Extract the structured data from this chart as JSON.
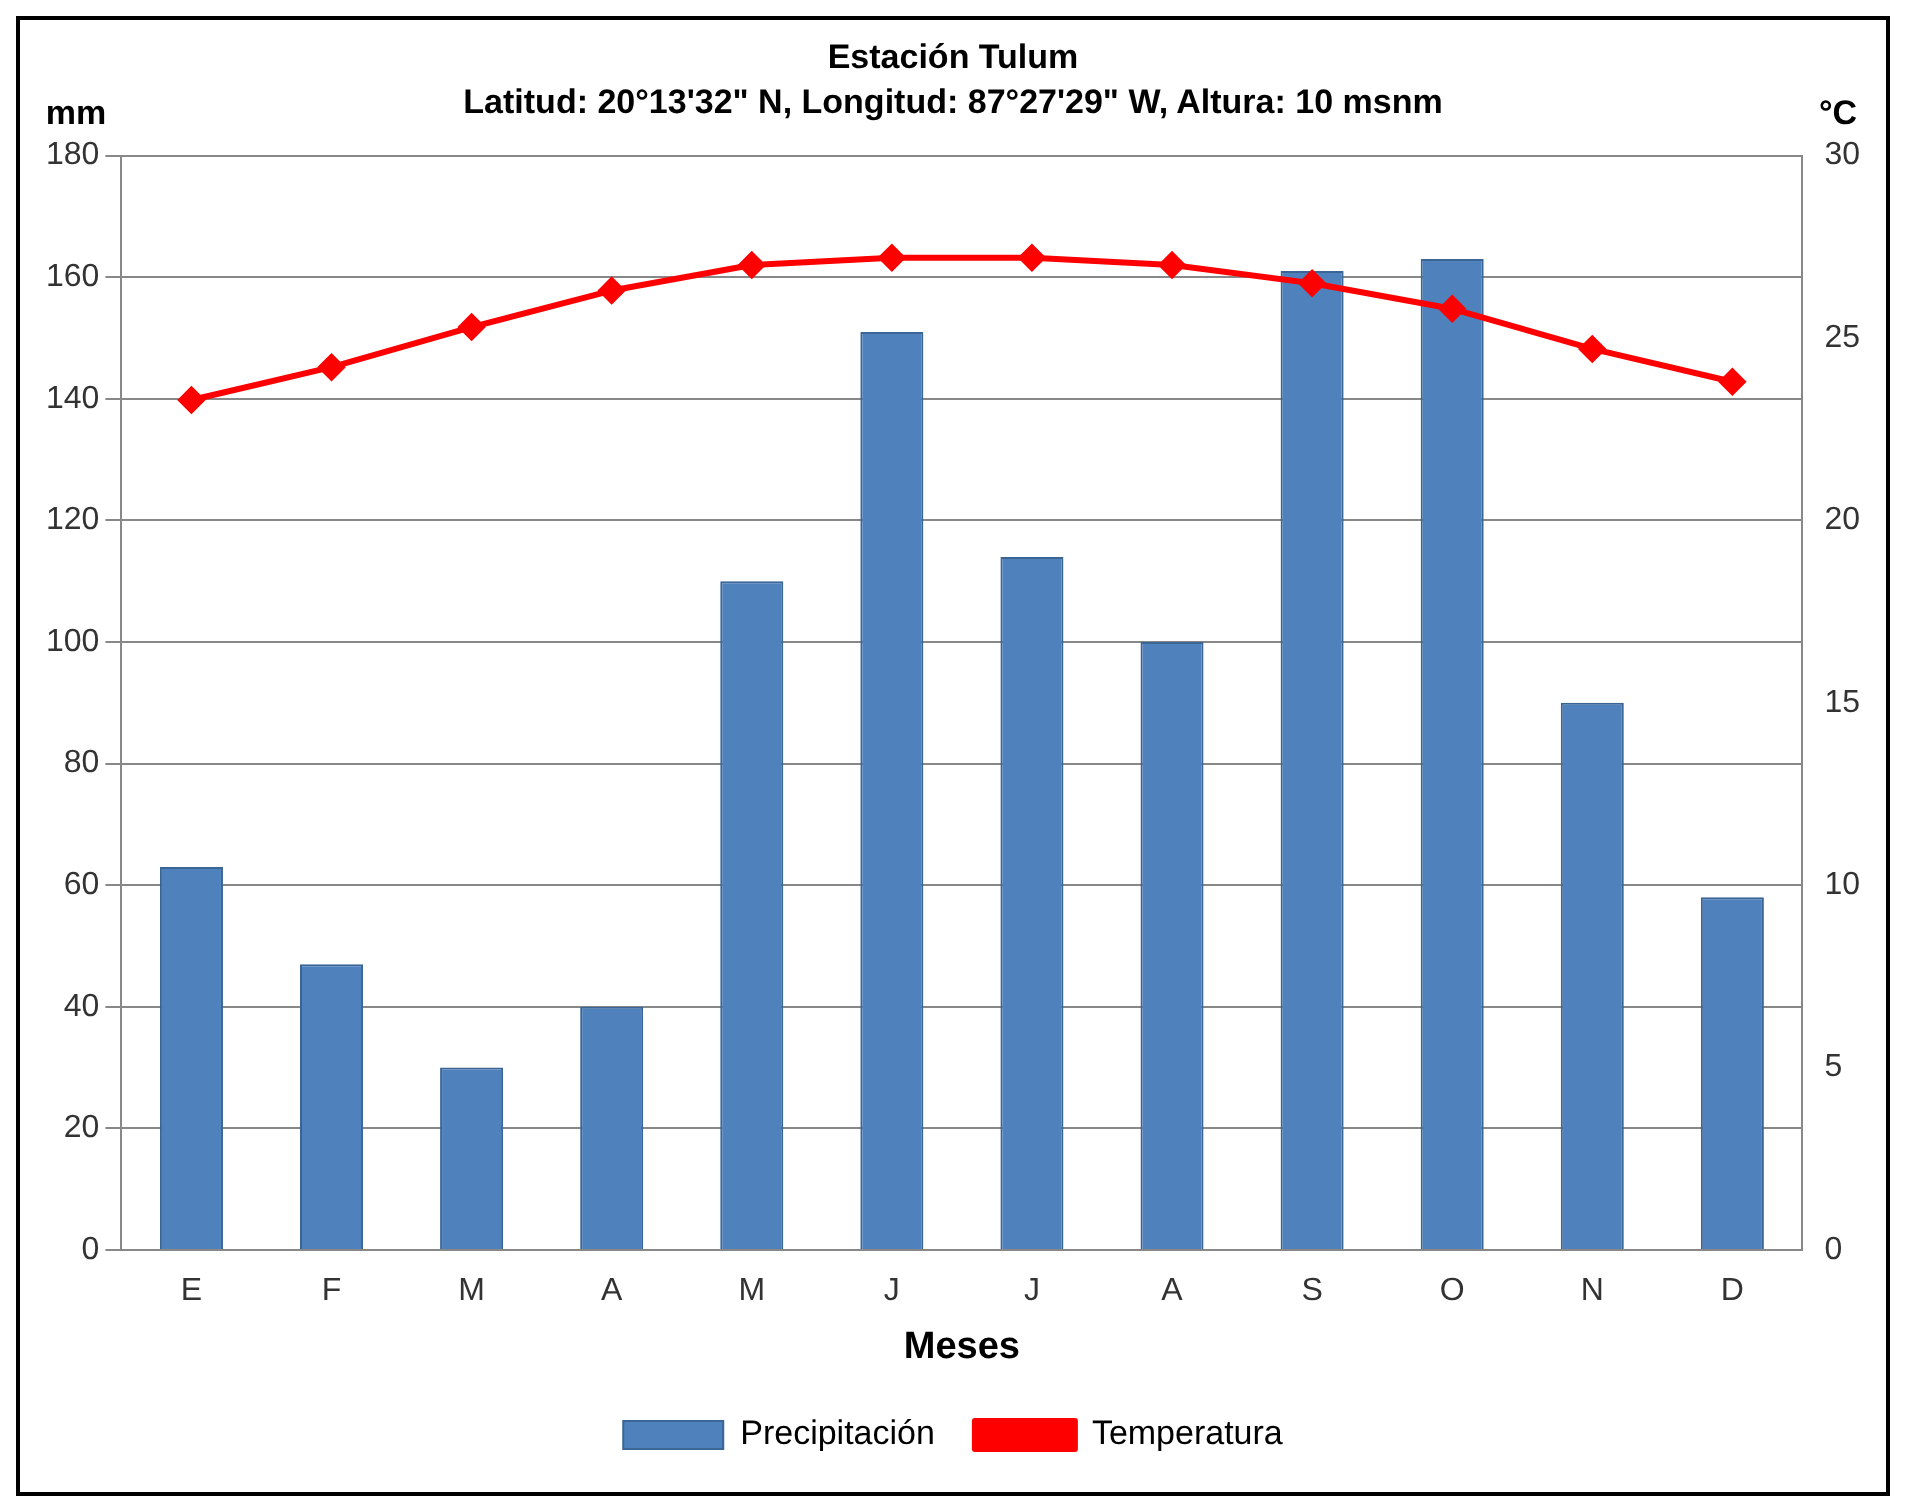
{
  "chart_data": {
    "type": "bar",
    "title": "Estación Tulum",
    "subtitle": "Latitud: 20°13'32\" N, Longitud: 87°27'29\" W, Altura: 10 msnm",
    "xlabel": "Meses",
    "ylabel": "mm",
    "y2label": "°C",
    "categories": [
      "E",
      "F",
      "M",
      "A",
      "M",
      "J",
      "J",
      "A",
      "S",
      "O",
      "N",
      "D"
    ],
    "series": [
      {
        "name": "Precipitación",
        "color": "#4f81bd",
        "values": [
          63,
          47,
          30,
          40,
          110,
          151,
          114,
          100,
          161,
          163,
          90,
          58
        ]
      },
      {
        "name": "Temperatura",
        "type": "line",
        "axis": "y2",
        "color": "#ff0000",
        "marker": "diamond",
        "values": [
          23.3,
          24.2,
          25.3,
          26.3,
          27.0,
          27.2,
          27.2,
          27.0,
          26.5,
          25.8,
          24.7,
          23.8
        ]
      }
    ],
    "ylim": [
      0,
      180
    ],
    "yticks": [
      0,
      20,
      40,
      60,
      80,
      100,
      120,
      140,
      160,
      180
    ],
    "y2lim": [
      0,
      30
    ],
    "y2ticks": [
      0,
      5,
      10,
      15,
      20,
      25,
      30
    ],
    "grid": "y",
    "legend": "bottom"
  }
}
